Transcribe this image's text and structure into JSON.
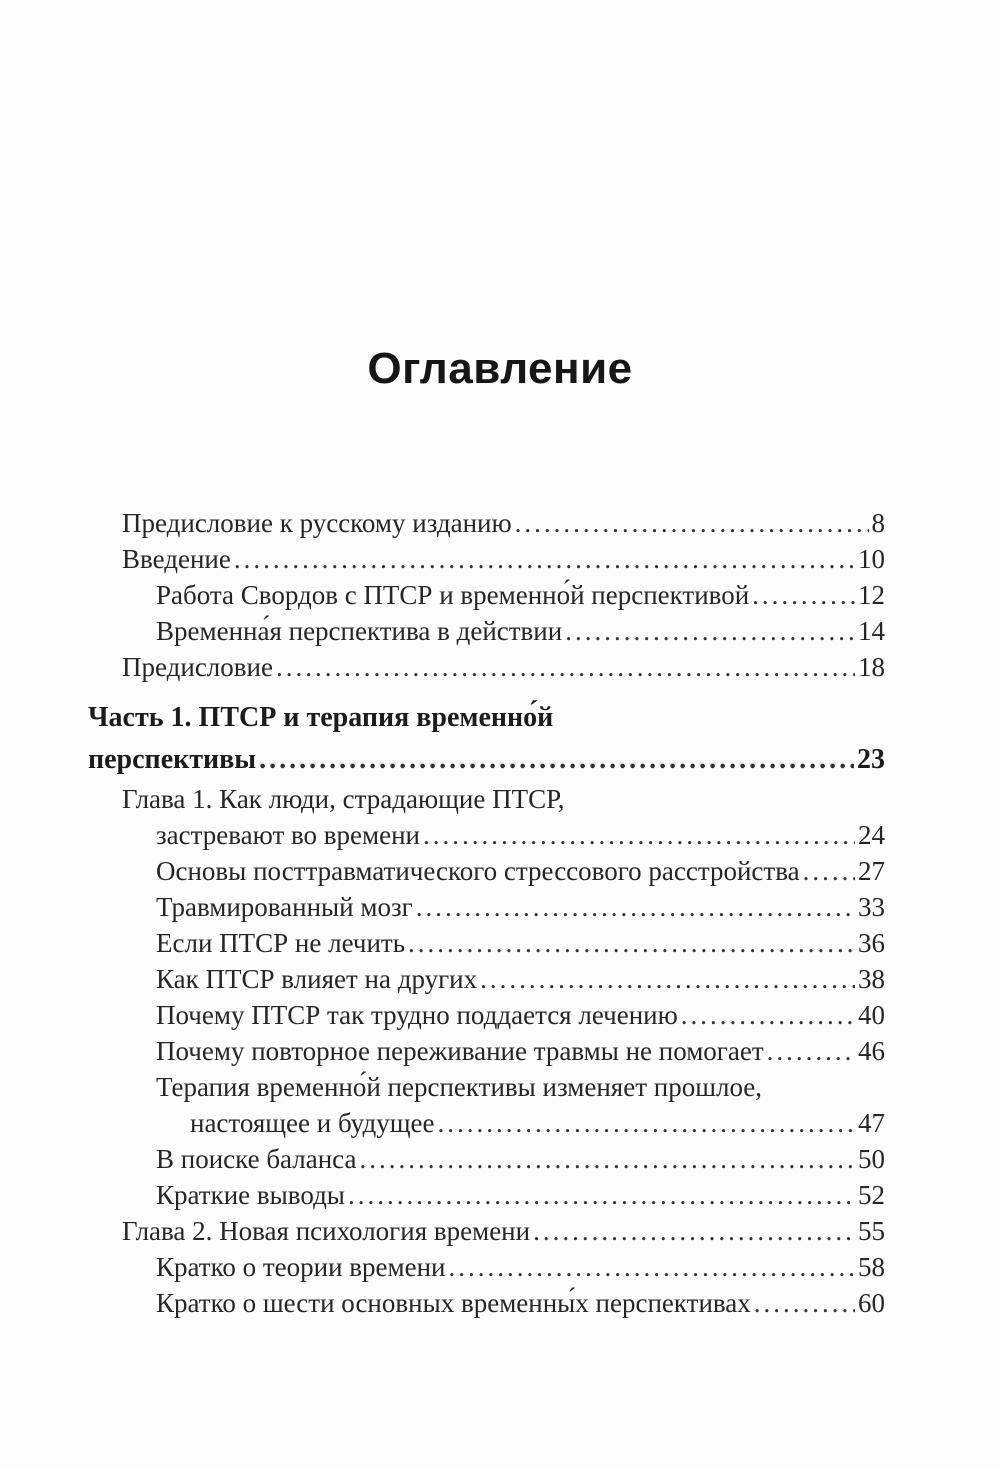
{
  "page": {
    "title": "Оглавление",
    "background_color": "#fdfdfd",
    "text_color": "#262626",
    "title_color": "#161616"
  },
  "toc": {
    "rows": [
      {
        "text": "Предисловие к русскому изданию",
        "page": "8",
        "indent": 1,
        "bold": false,
        "gap_before": false
      },
      {
        "text": "Введение",
        "page": "10",
        "indent": 1,
        "bold": false,
        "gap_before": false
      },
      {
        "text": "Работа Свордов с ПТСР и временно́й перспективой",
        "page": "12",
        "indent": 2,
        "bold": false,
        "gap_before": false
      },
      {
        "text": "Временна́я перспектива в действии",
        "page": "14",
        "indent": 2,
        "bold": false,
        "gap_before": false
      },
      {
        "text": "Предисловие",
        "page": "18",
        "indent": 1,
        "bold": false,
        "gap_before": false
      },
      {
        "text": "Часть 1. ПТСР и терапия временно́й",
        "page": null,
        "indent": 0,
        "bold": true,
        "gap_before": true
      },
      {
        "text": "перспективы",
        "page": "23",
        "indent": 0,
        "bold": true,
        "gap_before": false
      },
      {
        "text": "Глава 1. Как люди, страдающие ПТСР,",
        "page": null,
        "indent": 1,
        "bold": false,
        "gap_before": false
      },
      {
        "text": "застревают во времени",
        "page": "24",
        "indent": 2,
        "bold": false,
        "gap_before": false
      },
      {
        "text": "Основы посттравматического стрессового расстройства",
        "page": "27",
        "indent": 2,
        "bold": false,
        "gap_before": false
      },
      {
        "text": "Травмированный мозг",
        "page": "33",
        "indent": 2,
        "bold": false,
        "gap_before": false
      },
      {
        "text": "Если ПТСР не лечить",
        "page": "36",
        "indent": 2,
        "bold": false,
        "gap_before": false
      },
      {
        "text": "Как ПТСР влияет на других",
        "page": "38",
        "indent": 2,
        "bold": false,
        "gap_before": false
      },
      {
        "text": "Почему ПТСР так трудно поддается лечению",
        "page": "40",
        "indent": 2,
        "bold": false,
        "gap_before": false
      },
      {
        "text": "Почему повторное переживание травмы не помогает",
        "page": "46",
        "indent": 2,
        "bold": false,
        "gap_before": false
      },
      {
        "text": "Терапия временно́й перспективы изменяет прошлое,",
        "page": null,
        "indent": 2,
        "bold": false,
        "gap_before": false
      },
      {
        "text": "настоящее и будущее",
        "page": "47",
        "indent": 3,
        "bold": false,
        "gap_before": false
      },
      {
        "text": "В поиске баланса",
        "page": "50",
        "indent": 2,
        "bold": false,
        "gap_before": false
      },
      {
        "text": "Краткие выводы",
        "page": "52",
        "indent": 2,
        "bold": false,
        "gap_before": false
      },
      {
        "text": "Глава 2. Новая психология времени",
        "page": "55",
        "indent": 1,
        "bold": false,
        "gap_before": false
      },
      {
        "text": "Кратко о теории времени",
        "page": "58",
        "indent": 2,
        "bold": false,
        "gap_before": false
      },
      {
        "text": "Кратко о шести основных временны́х перспективах",
        "page": "60",
        "indent": 2,
        "bold": false,
        "gap_before": false
      }
    ]
  }
}
